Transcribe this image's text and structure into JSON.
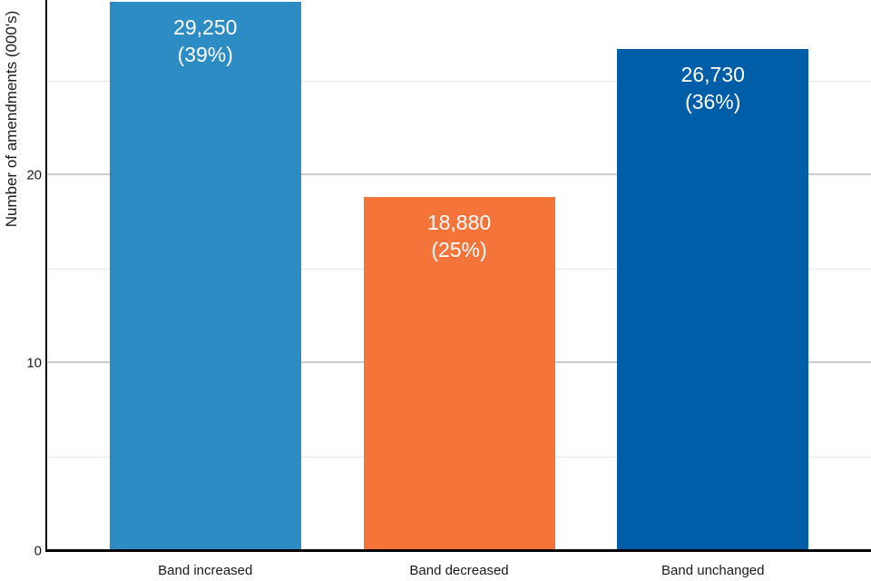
{
  "chart_data": {
    "type": "bar",
    "title": "",
    "xlabel": "",
    "ylabel": "Number of amendments (000's)",
    "ylim": [
      0,
      29.35
    ],
    "grid": true,
    "gridlines_minor": [
      5,
      15,
      25
    ],
    "gridlines_major": [
      10,
      20
    ],
    "yticks_labeled": [
      {
        "value": 0,
        "label": "0"
      },
      {
        "value": 10,
        "label": "10"
      },
      {
        "value": 20,
        "label": "20"
      }
    ],
    "categories": [
      "Band increased",
      "Band decreased",
      "Band unchanged"
    ],
    "values": [
      29.25,
      18.88,
      26.73
    ],
    "bars": [
      {
        "category": "Band increased",
        "value": 29.25,
        "label_value": "29,250",
        "label_pct": "(39%)",
        "color": "#2e8cc5"
      },
      {
        "category": "Band decreased",
        "value": 18.88,
        "label_value": "18,880",
        "label_pct": "(25%)",
        "color": "#f4743a"
      },
      {
        "category": "Band unchanged",
        "value": 26.73,
        "label_value": "26,730",
        "label_pct": "(36%)",
        "color": "#005da7"
      }
    ],
    "legend_position": "none",
    "bar_label_color": "#ffffff",
    "axis_color": "#000000"
  }
}
